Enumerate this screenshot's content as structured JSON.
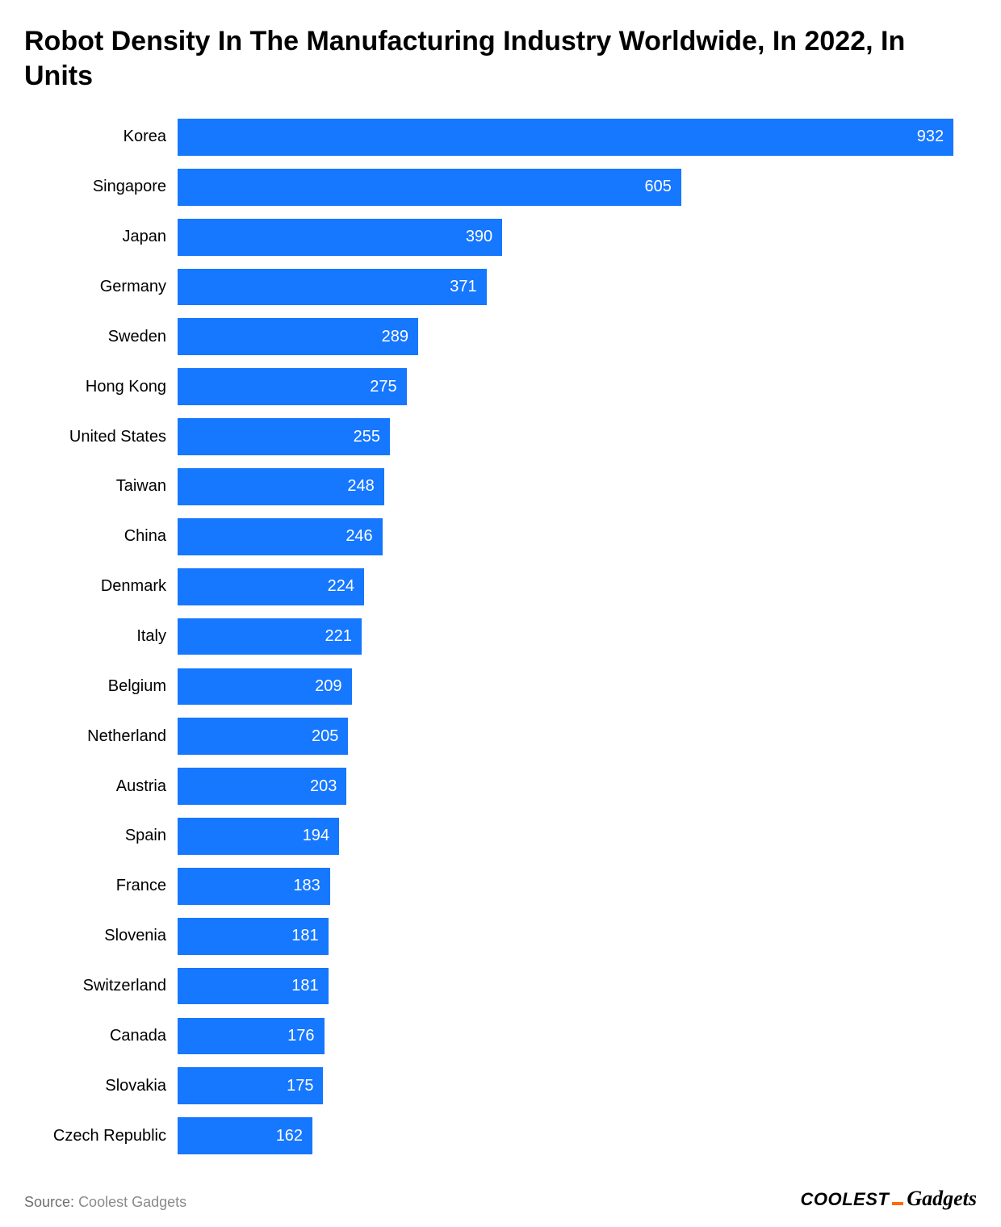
{
  "chart": {
    "type": "bar-horizontal",
    "title": "Robot Density In The Manufacturing Industry Worldwide, In 2022, In Units",
    "title_fontsize": 34,
    "title_color": "#000000",
    "background_color": "#ffffff",
    "bar_color": "#1677ff",
    "bar_value_color": "#ffffff",
    "bar_value_fontsize": 20,
    "ylabel_fontsize": 20,
    "ylabel_color": "#000000",
    "x_max": 960,
    "bar_height_ratio": 0.74,
    "categories": [
      "Korea",
      "Singapore",
      "Japan",
      "Germany",
      "Sweden",
      "Hong Kong",
      "United States",
      "Taiwan",
      "China",
      "Denmark",
      "Italy",
      "Belgium",
      "Netherland",
      "Austria",
      "Spain",
      "France",
      "Slovenia",
      "Switzerland",
      "Canada",
      "Slovakia",
      "Czech Republic"
    ],
    "values": [
      932,
      605,
      390,
      371,
      289,
      275,
      255,
      248,
      246,
      224,
      221,
      209,
      205,
      203,
      194,
      183,
      181,
      181,
      176,
      175,
      162
    ]
  },
  "footer": {
    "source_label": "Source:",
    "source_name": "Coolest Gadgets",
    "brand_part1": "COOLEST",
    "brand_part2": "Gadgets",
    "brand_dash_color": "#ff6a00"
  }
}
